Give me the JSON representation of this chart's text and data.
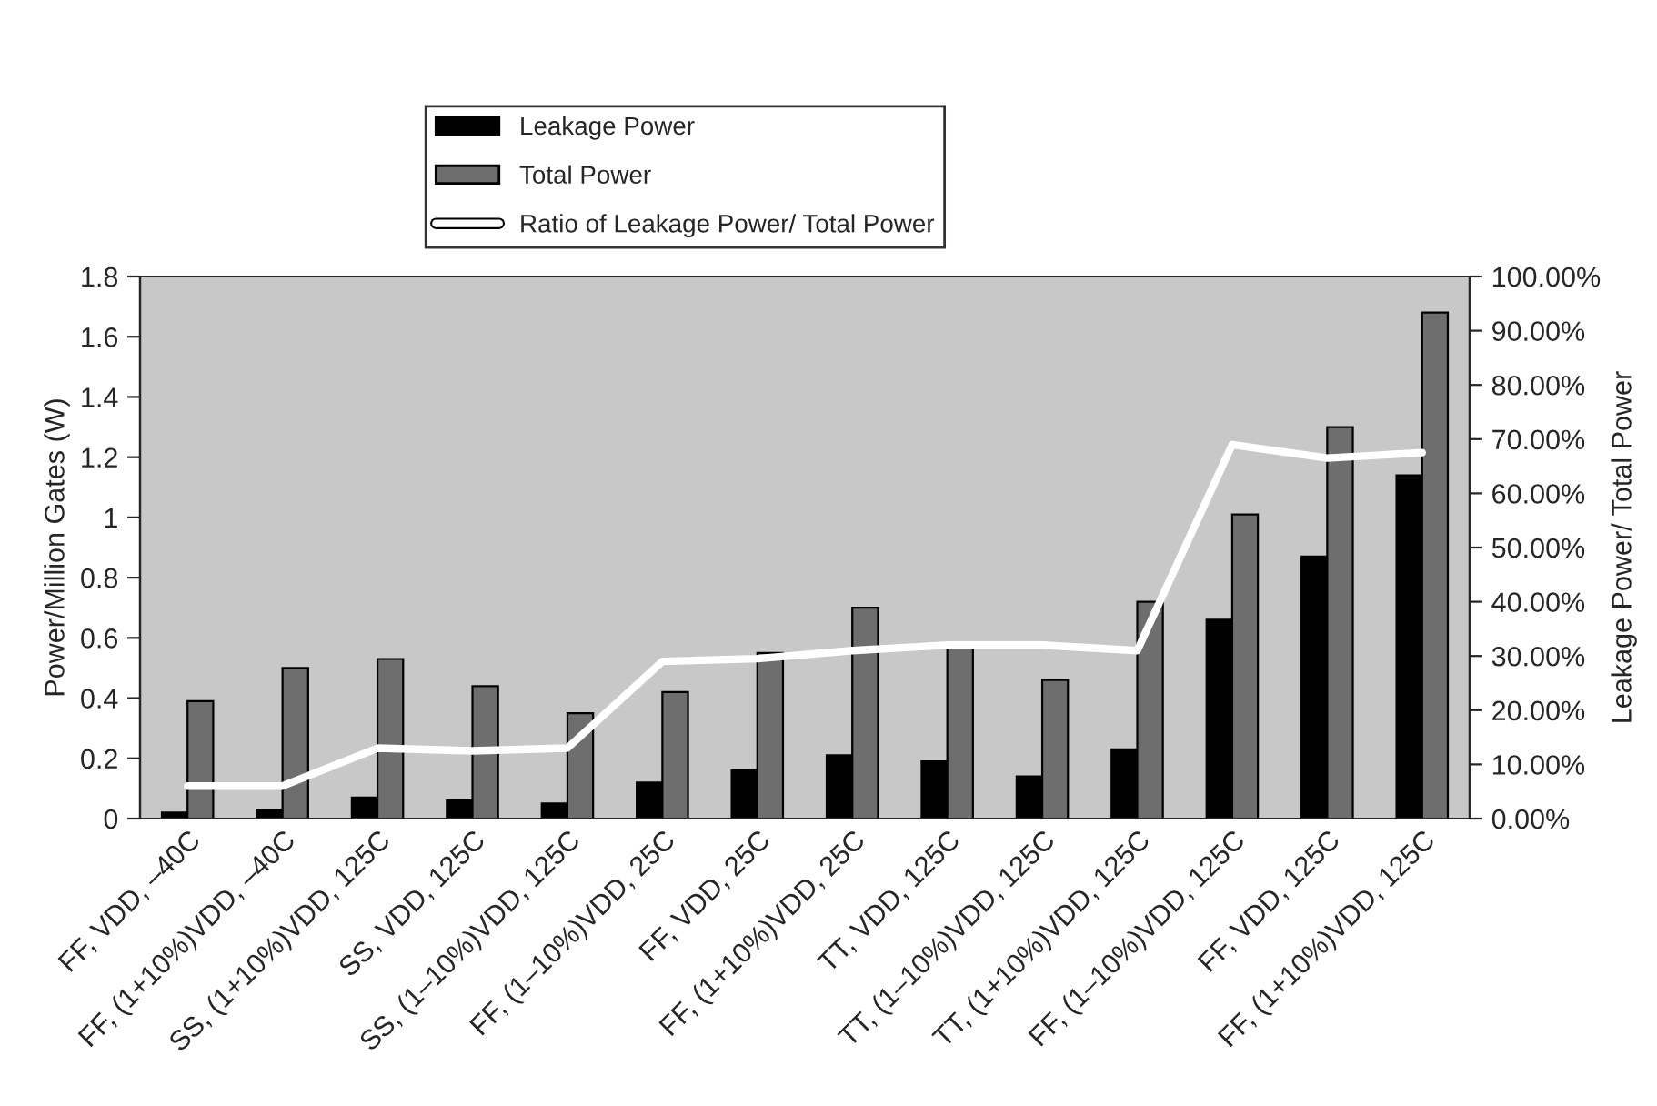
{
  "chart_data": {
    "type": "bar",
    "categories": [
      "FF, VDD, –40C",
      "FF, (1+10%)VDD, –40C",
      "SS, (1+10%)VDD, 125C",
      "SS, VDD, 125C",
      "SS, (1–10%)VDD, 125C",
      "FF, (1–10%)VDD, 25C",
      "FF, VDD, 25C",
      "FF, (1+10%)VDD, 25C",
      "TT, VDD, 125C",
      "TT, (1–10%)VDD, 125C",
      "TT, (1+10%)VDD, 125C",
      "FF, (1–10%)VDD, 125C",
      "FF, VDD, 125C",
      "FF, (1+10%)VDD, 125C"
    ],
    "series": [
      {
        "name": "Leakage Power",
        "color": "#000000",
        "values": [
          0.02,
          0.03,
          0.07,
          0.06,
          0.05,
          0.12,
          0.16,
          0.21,
          0.19,
          0.14,
          0.23,
          0.66,
          0.87,
          1.14
        ]
      },
      {
        "name": "Total Power",
        "color": "#6e6e6e",
        "values": [
          0.39,
          0.5,
          0.53,
          0.44,
          0.35,
          0.42,
          0.55,
          0.7,
          0.57,
          0.46,
          0.72,
          1.01,
          1.3,
          1.68
        ]
      },
      {
        "name": "Ratio of Leakage Power/ Total Power",
        "color": "#ffffff",
        "type": "line",
        "axis": "y2",
        "values": [
          6,
          6,
          13,
          12.5,
          13,
          29,
          29.5,
          31,
          32,
          32,
          31,
          69,
          66.5,
          67.5
        ]
      }
    ],
    "ylabel": "Power/Million Gates (W)",
    "y2label": "Leakage Power/ Total Power",
    "ylim": [
      0,
      1.8
    ],
    "yticks": [
      0,
      0.2,
      0.4,
      0.6,
      0.8,
      1,
      1.2,
      1.4,
      1.6,
      1.8
    ],
    "y2lim": [
      0,
      100
    ],
    "y2ticks": [
      {
        "value": 0,
        "label": "0.00%"
      },
      {
        "value": 10,
        "label": "10.00%"
      },
      {
        "value": 20,
        "label": "20.00%"
      },
      {
        "value": 30,
        "label": "30.00%"
      },
      {
        "value": 40,
        "label": "40.00%"
      },
      {
        "value": 50,
        "label": "50.00%"
      },
      {
        "value": 60,
        "label": "60.00%"
      },
      {
        "value": 70,
        "label": "70.00%"
      },
      {
        "value": 80,
        "label": "80.00%"
      },
      {
        "value": 90,
        "label": "90.00%"
      },
      {
        "value": 100,
        "label": "100.00%"
      }
    ],
    "legend": "top"
  }
}
